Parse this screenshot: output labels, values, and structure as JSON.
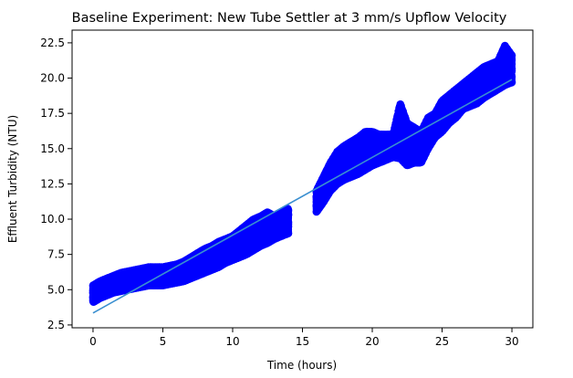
{
  "chart_data": {
    "type": "scatter",
    "title": "Baseline Experiment: New Tube Settler at 3 mm/s Upflow Velocity",
    "xlabel": "Time (hours)",
    "ylabel": "Effluent Turbidity (NTU)",
    "xlim": [
      -1.5,
      31.5
    ],
    "ylim": [
      2.3,
      23.4
    ],
    "xticks": [
      0,
      5,
      10,
      15,
      20,
      25,
      30
    ],
    "xtick_labels": [
      "0",
      "5",
      "10",
      "15",
      "20",
      "25",
      "30"
    ],
    "yticks": [
      2.5,
      5.0,
      7.5,
      10.0,
      12.5,
      15.0,
      17.5,
      20.0,
      22.5
    ],
    "ytick_labels": [
      "2.5",
      "5.0",
      "7.5",
      "10.0",
      "12.5",
      "15.0",
      "17.5",
      "20.0",
      "22.5"
    ],
    "grid": false,
    "series": [
      {
        "kind": "scatter",
        "color": "#0000ff",
        "x": [
          0,
          0.5,
          1,
          1.5,
          2,
          2.5,
          3,
          3.5,
          4,
          4.5,
          5,
          5.5,
          6,
          6.5,
          7,
          7.5,
          8,
          8.5,
          9,
          9.5,
          10,
          10.5,
          11,
          11.5,
          12,
          12.5,
          13,
          13.5,
          14,
          16,
          16.5,
          17,
          17.5,
          18,
          18.5,
          19,
          19.5,
          20,
          20.5,
          21,
          21.5,
          22,
          22.5,
          23,
          23.5,
          24,
          24.5,
          25,
          25.5,
          26,
          26.5,
          27,
          27.5,
          28,
          28.5,
          29,
          29.5,
          30
        ],
        "low": [
          4.1,
          4.4,
          4.6,
          4.8,
          4.9,
          5.0,
          5.1,
          5.2,
          5.3,
          5.3,
          5.3,
          5.4,
          5.5,
          5.6,
          5.8,
          6.0,
          6.2,
          6.4,
          6.6,
          6.9,
          7.1,
          7.3,
          7.5,
          7.8,
          8.1,
          8.3,
          8.6,
          8.8,
          9.0,
          10.5,
          11.2,
          12.0,
          12.5,
          12.8,
          13.0,
          13.2,
          13.5,
          13.8,
          14.0,
          14.2,
          14.4,
          14.3,
          13.8,
          14.0,
          14.0,
          15.0,
          15.8,
          16.2,
          16.8,
          17.2,
          17.8,
          18.0,
          18.2,
          18.6,
          18.9,
          19.2,
          19.5,
          19.7
        ],
        "high": [
          5.3,
          5.6,
          5.8,
          6.0,
          6.2,
          6.3,
          6.4,
          6.5,
          6.6,
          6.6,
          6.6,
          6.7,
          6.8,
          7.0,
          7.3,
          7.6,
          7.9,
          8.1,
          8.4,
          8.6,
          8.8,
          9.2,
          9.6,
          10.0,
          10.2,
          10.5,
          10.2,
          10.5,
          10.8,
          12.0,
          13.0,
          14.0,
          14.8,
          15.2,
          15.5,
          15.8,
          16.2,
          16.2,
          16.0,
          16.0,
          16.0,
          18.2,
          16.8,
          16.5,
          16.2,
          17.2,
          17.5,
          18.4,
          18.8,
          19.2,
          19.6,
          20.0,
          20.4,
          20.8,
          21.0,
          21.2,
          22.3,
          21.6
        ]
      },
      {
        "kind": "line",
        "color": "#3a8fd0",
        "x": [
          0,
          30
        ],
        "y": [
          3.35,
          19.9
        ]
      }
    ]
  }
}
